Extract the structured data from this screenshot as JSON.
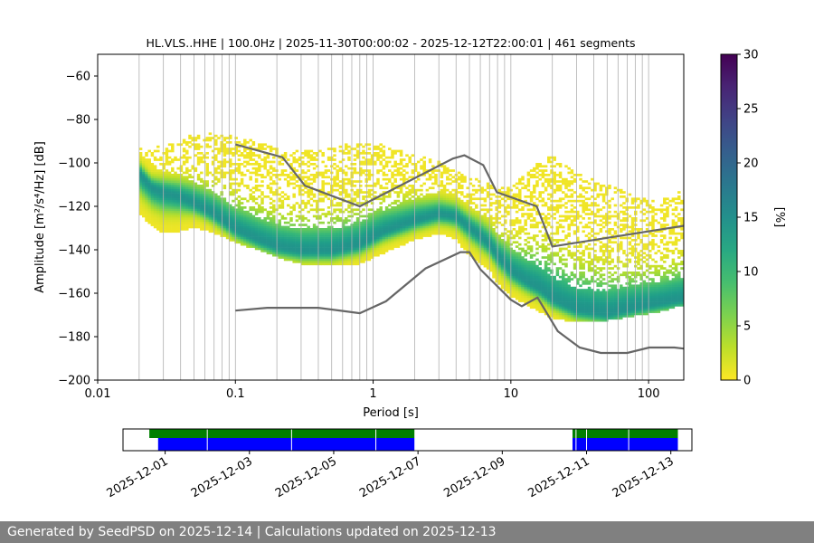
{
  "chart_data": [
    {
      "type": "heatmap",
      "title": "HL.VLS..HHE | 100.0Hz | 2025-11-30T00:00:02 - 2025-12-12T22:00:01 | 461 segments",
      "xlabel": "Period [s]",
      "ylabel": "Amplitude [m²/s⁴/Hz] [dB]",
      "xscale": "log",
      "xlim": [
        0.01,
        180
      ],
      "ylim": [
        -200,
        -50
      ],
      "xticks": [
        0.01,
        0.1,
        1,
        10,
        100
      ],
      "xtick_labels": [
        "0.01",
        "0.1",
        "1",
        "10",
        "100"
      ],
      "yticks": [
        -200,
        -180,
        -160,
        -140,
        -120,
        -100,
        -80,
        -60
      ],
      "ytick_labels": [
        "−200",
        "−180",
        "−160",
        "−140",
        "−120",
        "−100",
        "−80",
        "−60"
      ],
      "grid": "vertical-log",
      "colorbar": {
        "label": "[%]",
        "range": [
          0,
          30
        ],
        "ticks": [
          0,
          5,
          10,
          15,
          20,
          25,
          30
        ],
        "colormap": "viridis_r"
      },
      "psd_mode": {
        "period": [
          0.02,
          0.025,
          0.03,
          0.04,
          0.05,
          0.07,
          0.1,
          0.15,
          0.2,
          0.3,
          0.5,
          0.8,
          1.2,
          2,
          3,
          4,
          5,
          6,
          7,
          8,
          10,
          13,
          16,
          20,
          30,
          50,
          80,
          120,
          180
        ],
        "db": [
          -105,
          -112,
          -114,
          -116,
          -119,
          -124,
          -131,
          -136,
          -139,
          -141,
          -141,
          -138,
          -132,
          -127,
          -124,
          -125,
          -130,
          -134,
          -138,
          -143,
          -150,
          -155,
          -158,
          -163,
          -168,
          -170,
          -167,
          -165,
          -163
        ],
        "upper_db": [
          -93,
          -94,
          -92,
          -90,
          -87,
          -86,
          -88,
          -91,
          -94,
          -95,
          -93,
          -91,
          -92,
          -96,
          -100,
          -104,
          -108,
          -108,
          -110,
          -113,
          -110,
          -105,
          -100,
          -97,
          -105,
          -110,
          -116,
          -118,
          -113
        ],
        "lower_db": [
          -124,
          -130,
          -133,
          -132,
          -130,
          -133,
          -137,
          -141,
          -144,
          -147,
          -148,
          -147,
          -142,
          -136,
          -133,
          -136,
          -143,
          -147,
          -150,
          -156,
          -162,
          -166,
          -169,
          -172,
          -174,
          -173,
          -171,
          -169,
          -166
        ]
      },
      "nhnm": {
        "name": "",
        "period": [
          0.1,
          0.22,
          0.32,
          0.8,
          3.8,
          4.6,
          6.3,
          7.9,
          15.4,
          20,
          354.8
        ],
        "db": [
          -91.5,
          -97.4,
          -110.5,
          -120,
          -98,
          -96.5,
          -101,
          -113.5,
          -120,
          -138.5,
          -126
        ]
      },
      "nlnm": {
        "name": "",
        "period": [
          0.1,
          0.17,
          0.4,
          0.8,
          1.24,
          2.4,
          4.3,
          5,
          6,
          10,
          12,
          15.6,
          21.9,
          31.6,
          45,
          70,
          101,
          154,
          180
        ],
        "db": [
          -168,
          -166.7,
          -166.7,
          -169.2,
          -163.7,
          -148.6,
          -141.1,
          -141.1,
          -149,
          -163,
          -166,
          -162,
          -177.5,
          -185,
          -187.5,
          -187.5,
          -185,
          -185,
          -185.5
        ]
      }
    },
    {
      "type": "timeline",
      "xscale": "date",
      "xlim": [
        "2025-11-30T00:00",
        "2025-12-13T12:00"
      ],
      "xticks": [
        "2025-12-01",
        "2025-12-03",
        "2025-12-05",
        "2025-12-07",
        "2025-12-09",
        "2025-12-11",
        "2025-12-13"
      ],
      "xtick_labels": [
        "2025-12-01",
        "2025-12-03",
        "2025-12-05",
        "2025-12-07",
        "2025-12-09",
        "2025-12-11",
        "2025-12-13"
      ],
      "bars": [
        {
          "row": "top",
          "color": "#007f00",
          "segments": [
            [
              "2025-11-30T15:00",
              "2025-12-06T22:00"
            ],
            [
              "2025-12-10T16:00",
              "2025-12-13T04:00"
            ]
          ]
        },
        {
          "row": "bottom",
          "color": "#0000ff",
          "segments": [
            [
              "2025-11-30T20:00",
              "2025-12-06T22:00"
            ],
            [
              "2025-12-10T16:00",
              "2025-12-13T04:00"
            ]
          ]
        }
      ],
      "dividers": [
        "2025-12-02",
        "2025-12-04",
        "2025-12-06",
        "2025-12-10T18:00",
        "2025-12-11",
        "2025-12-12"
      ]
    }
  ],
  "footer": {
    "text": "Generated by SeedPSD on 2025-12-14 | Calculations updated on 2025-12-13"
  }
}
